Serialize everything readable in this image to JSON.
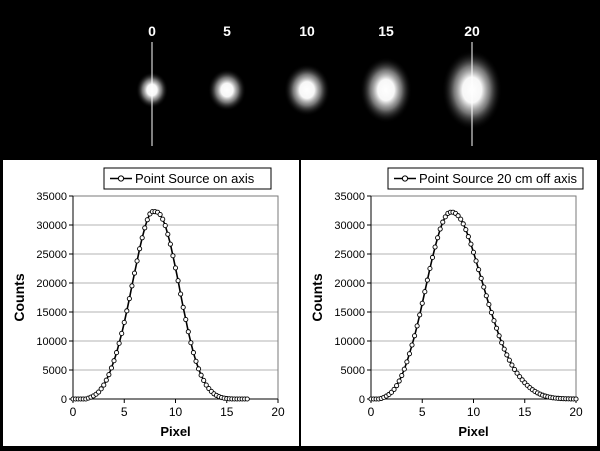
{
  "spots": {
    "labels": [
      "0",
      "5",
      "10",
      "15",
      "20"
    ]
  },
  "chart_data": [
    {
      "type": "line",
      "legend": "Point Source on axis",
      "legend_position": "top",
      "xlabel": "Pixel",
      "ylabel": "Counts",
      "xlim": [
        0,
        20
      ],
      "ylim": [
        0,
        35000
      ],
      "x_ticks": [
        "0",
        "5",
        "10",
        "15",
        "20"
      ],
      "y_ticks": [
        "0",
        "5000",
        "10000",
        "15000",
        "20000",
        "25000",
        "30000",
        "35000"
      ],
      "grid": "horizontal",
      "marker": "open-circle",
      "series": [
        {
          "name": "Point Source on axis",
          "x": [
            0,
            0.25,
            0.5,
            0.75,
            1,
            1.25,
            1.5,
            1.75,
            2,
            2.25,
            2.5,
            2.75,
            3,
            3.25,
            3.5,
            3.75,
            4,
            4.25,
            4.5,
            4.75,
            5,
            5.25,
            5.5,
            5.75,
            6,
            6.25,
            6.5,
            6.75,
            7,
            7.25,
            7.5,
            7.75,
            8,
            8.25,
            8.5,
            8.75,
            9,
            9.25,
            9.5,
            9.75,
            10,
            10.25,
            10.5,
            10.75,
            11,
            11.25,
            11.5,
            11.75,
            12,
            12.25,
            12.5,
            12.75,
            13,
            13.25,
            13.5,
            13.75,
            14,
            14.25,
            14.5,
            14.75,
            15,
            15.25,
            15.5,
            15.75,
            16,
            16.25,
            16.5,
            16.75,
            17
          ],
          "y": [
            0,
            0,
            0,
            0,
            0,
            0,
            150,
            320,
            530,
            820,
            1200,
            1750,
            2400,
            3250,
            4200,
            5350,
            6600,
            8000,
            9600,
            11300,
            13200,
            15200,
            17300,
            19500,
            21700,
            23800,
            25900,
            27800,
            29500,
            30900,
            31900,
            32300,
            32300,
            32200,
            31800,
            31000,
            29900,
            28400,
            26700,
            24700,
            22600,
            20400,
            18100,
            15800,
            13700,
            11600,
            9700,
            8000,
            6500,
            5200,
            4100,
            3200,
            2400,
            1800,
            1300,
            900,
            620,
            400,
            250,
            140,
            70,
            30,
            10,
            0,
            0,
            0,
            0,
            0,
            0
          ]
        }
      ]
    },
    {
      "type": "line",
      "legend": "Point Source 20 cm off axis",
      "legend_position": "top",
      "xlabel": "Pixel",
      "ylabel": "Counts",
      "xlim": [
        0,
        20
      ],
      "ylim": [
        0,
        35000
      ],
      "x_ticks": [
        "0",
        "5",
        "10",
        "15",
        "20"
      ],
      "y_ticks": [
        "0",
        "5000",
        "10000",
        "15000",
        "20000",
        "25000",
        "30000",
        "35000"
      ],
      "grid": "horizontal",
      "marker": "open-circle",
      "series": [
        {
          "name": "Point Source 20 cm off axis",
          "x": [
            0,
            0.25,
            0.5,
            0.75,
            1,
            1.25,
            1.5,
            1.75,
            2,
            2.25,
            2.5,
            2.75,
            3,
            3.25,
            3.5,
            3.75,
            4,
            4.25,
            4.5,
            4.75,
            5,
            5.25,
            5.5,
            5.75,
            6,
            6.25,
            6.5,
            6.75,
            7,
            7.25,
            7.5,
            7.75,
            8,
            8.25,
            8.5,
            8.75,
            9,
            9.25,
            9.5,
            9.75,
            10,
            10.25,
            10.5,
            10.75,
            11,
            11.25,
            11.5,
            11.75,
            12,
            12.25,
            12.5,
            12.75,
            13,
            13.25,
            13.5,
            13.75,
            14,
            14.25,
            14.5,
            14.75,
            15,
            15.25,
            15.5,
            15.75,
            16,
            16.25,
            16.5,
            16.75,
            17,
            17.25,
            17.5,
            17.75,
            18,
            18.25,
            18.5,
            18.75,
            19,
            19.25,
            19.5,
            19.75,
            20
          ],
          "y": [
            0,
            0,
            0,
            0,
            100,
            280,
            500,
            780,
            1150,
            1650,
            2300,
            3100,
            4050,
            5150,
            6400,
            7800,
            9300,
            10900,
            12600,
            14500,
            16500,
            18500,
            20500,
            22500,
            24400,
            26200,
            27800,
            29300,
            30500,
            31400,
            32000,
            32200,
            32200,
            32000,
            31600,
            31000,
            30200,
            29200,
            28000,
            26700,
            25300,
            23800,
            22300,
            20800,
            19300,
            17800,
            16300,
            14900,
            13500,
            12200,
            10900,
            9700,
            8600,
            7600,
            6700,
            5850,
            5100,
            4450,
            3850,
            3300,
            2800,
            2350,
            1950,
            1600,
            1300,
            1050,
            830,
            650,
            500,
            380,
            290,
            210,
            150,
            110,
            80,
            55,
            40,
            25,
            15,
            5,
            0
          ]
        }
      ]
    }
  ]
}
